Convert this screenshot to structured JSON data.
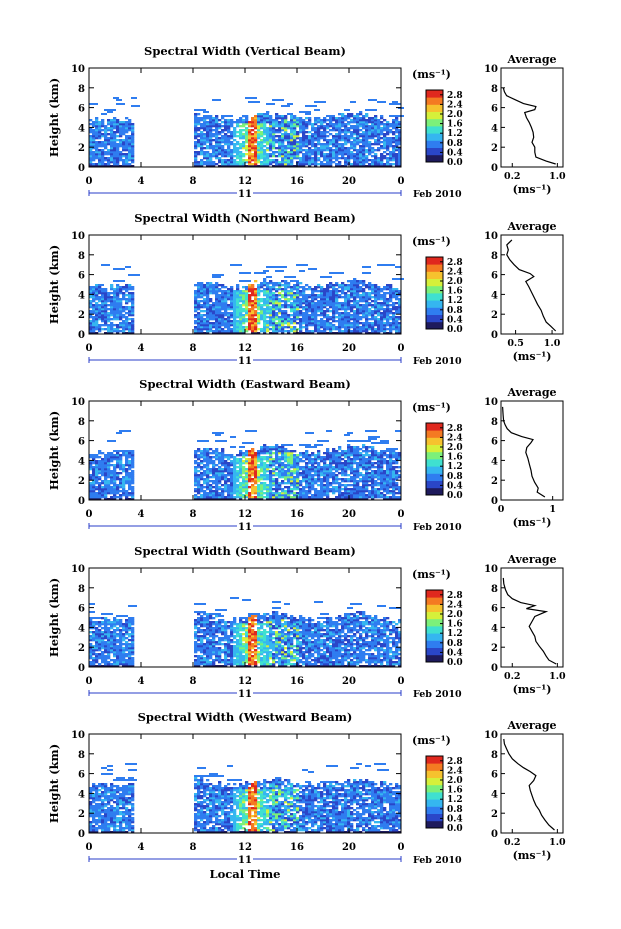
{
  "chart_data": [
    {
      "type": "heatmap",
      "title": "Spectral Width (Vertical Beam)",
      "ylabel": "Height (km)",
      "x_ticks": [
        "0",
        "4",
        "8",
        "12",
        "16",
        "20",
        "0"
      ],
      "y_ticks": [
        "0",
        "2",
        "4",
        "6",
        "8",
        "10"
      ],
      "xlim": [
        0,
        24
      ],
      "ylim": [
        0,
        10
      ],
      "day_label": "11",
      "date_label": "Feb 2010",
      "colorbar": {
        "unit": "(ms⁻¹)",
        "ticks": [
          "0.0",
          "0.4",
          "0.8",
          "1.2",
          "1.6",
          "2.0",
          "2.4",
          "2.8"
        ],
        "range": [
          0,
          3.0
        ]
      },
      "profile": {
        "title": "Average",
        "xlabel": "(ms⁻¹)",
        "x_ticks": [
          "0.2",
          "1.0"
        ],
        "x_tick_values": [
          0.2,
          1.0
        ],
        "xlim": [
          0,
          1.1
        ],
        "y_ticks": [
          "0",
          "2",
          "4",
          "6",
          "8",
          "10"
        ],
        "heights": [
          0.3,
          0.6,
          1.0,
          1.5,
          2.0,
          2.5,
          3.0,
          3.5,
          4.0,
          4.5,
          5.0,
          5.5,
          5.8,
          6.1,
          6.4,
          6.8,
          7.2,
          7.6,
          8.0
        ],
        "values": [
          0.97,
          0.8,
          0.62,
          0.6,
          0.6,
          0.55,
          0.58,
          0.57,
          0.54,
          0.5,
          0.45,
          0.42,
          0.6,
          0.62,
          0.4,
          0.25,
          0.1,
          0.06,
          0.04
        ]
      }
    },
    {
      "type": "heatmap",
      "title": "Spectral Width (Northward Beam)",
      "ylabel": "Height (km)",
      "x_ticks": [
        "0",
        "4",
        "8",
        "12",
        "16",
        "20",
        "0"
      ],
      "y_ticks": [
        "0",
        "2",
        "4",
        "6",
        "8",
        "10"
      ],
      "xlim": [
        0,
        24
      ],
      "ylim": [
        0,
        10
      ],
      "day_label": "11",
      "date_label": "Feb 2010",
      "colorbar": {
        "unit": "(ms⁻¹)",
        "ticks": [
          "0.0",
          "0.4",
          "0.8",
          "1.2",
          "1.6",
          "2.0",
          "2.4",
          "2.8"
        ],
        "range": [
          0,
          3.0
        ]
      },
      "profile": {
        "title": "Average",
        "xlabel": "(ms⁻¹)",
        "x_ticks": [
          "0.5",
          "1.0"
        ],
        "x_tick_values": [
          0.5,
          1.0
        ],
        "xlim": [
          0.3,
          1.15
        ],
        "y_ticks": [
          "0",
          "2",
          "4",
          "6",
          "8",
          "10"
        ],
        "heights": [
          0.3,
          0.8,
          1.2,
          1.8,
          2.4,
          3.0,
          3.6,
          4.2,
          4.8,
          5.3,
          5.8,
          6.1,
          6.5,
          7.0,
          7.5,
          8.0,
          8.5,
          9.0,
          9.5
        ],
        "values": [
          1.05,
          0.98,
          0.92,
          0.88,
          0.85,
          0.8,
          0.76,
          0.72,
          0.68,
          0.64,
          0.75,
          0.7,
          0.55,
          0.48,
          0.42,
          0.38,
          0.4,
          0.38,
          0.45
        ]
      }
    },
    {
      "type": "heatmap",
      "title": "Spectral Width (Eastward Beam)",
      "ylabel": "Height (km)",
      "x_ticks": [
        "0",
        "4",
        "8",
        "12",
        "16",
        "20",
        "0"
      ],
      "y_ticks": [
        "0",
        "2",
        "4",
        "6",
        "8",
        "10"
      ],
      "xlim": [
        0,
        24
      ],
      "ylim": [
        0,
        10
      ],
      "day_label": "11",
      "date_label": "Feb 2010",
      "colorbar": {
        "unit": "(ms⁻¹)",
        "ticks": [
          "0.0",
          "0.4",
          "0.8",
          "1.2",
          "1.6",
          "2.0",
          "2.4",
          "2.8"
        ],
        "range": [
          0,
          3.0
        ]
      },
      "profile": {
        "title": "Average",
        "xlabel": "(ms⁻¹)",
        "x_ticks": [
          "0",
          "1"
        ],
        "x_tick_values": [
          0,
          1
        ],
        "xlim": [
          0,
          1.2
        ],
        "y_ticks": [
          "0",
          "2",
          "4",
          "6",
          "8",
          "10"
        ],
        "heights": [
          0.3,
          0.8,
          1.2,
          1.8,
          2.4,
          3.0,
          3.6,
          4.2,
          4.8,
          5.3,
          5.8,
          6.1,
          6.4,
          6.8,
          7.2,
          7.6,
          8.0,
          8.6,
          9.4
        ],
        "values": [
          0.85,
          0.7,
          0.72,
          0.65,
          0.6,
          0.58,
          0.55,
          0.52,
          0.48,
          0.5,
          0.58,
          0.62,
          0.4,
          0.2,
          0.12,
          0.08,
          0.05,
          0.04,
          0.03
        ]
      }
    },
    {
      "type": "heatmap",
      "title": "Spectral Width (Southward Beam)",
      "ylabel": "Height (km)",
      "x_ticks": [
        "0",
        "4",
        "8",
        "12",
        "16",
        "20",
        "0"
      ],
      "y_ticks": [
        "0",
        "2",
        "4",
        "6",
        "8",
        "10"
      ],
      "xlim": [
        0,
        24
      ],
      "ylim": [
        0,
        10
      ],
      "day_label": "11",
      "date_label": "Feb 2010",
      "colorbar": {
        "unit": "(ms⁻¹)",
        "ticks": [
          "0.0",
          "0.4",
          "0.8",
          "1.2",
          "1.6",
          "2.0",
          "2.4",
          "2.8"
        ],
        "range": [
          0,
          3.0
        ]
      },
      "profile": {
        "title": "Average",
        "xlabel": "(ms⁻¹)",
        "x_ticks": [
          "0.2",
          "1.0"
        ],
        "x_tick_values": [
          0.2,
          1.0
        ],
        "xlim": [
          0,
          1.1
        ],
        "y_ticks": [
          "0",
          "2",
          "4",
          "6",
          "8",
          "10"
        ],
        "heights": [
          0.3,
          0.7,
          1.1,
          1.6,
          2.1,
          2.6,
          3.1,
          3.6,
          4.1,
          4.6,
          5.1,
          5.6,
          5.9,
          6.2,
          6.5,
          6.9,
          7.3,
          7.8,
          8.4,
          9.0
        ],
        "values": [
          0.98,
          0.85,
          0.8,
          0.75,
          0.68,
          0.62,
          0.6,
          0.55,
          0.5,
          0.55,
          0.6,
          0.8,
          0.45,
          0.6,
          0.35,
          0.2,
          0.12,
          0.08,
          0.05,
          0.04
        ]
      }
    },
    {
      "type": "heatmap",
      "title": "Spectral Width (Westward Beam)",
      "ylabel": "Height (km)",
      "xlabel": "Local Time",
      "x_ticks": [
        "0",
        "4",
        "8",
        "12",
        "16",
        "20",
        "0"
      ],
      "y_ticks": [
        "0",
        "2",
        "4",
        "6",
        "8",
        "10"
      ],
      "xlim": [
        0,
        24
      ],
      "ylim": [
        0,
        10
      ],
      "day_label": "11",
      "date_label": "Feb 2010",
      "colorbar": {
        "unit": "(ms⁻¹)",
        "ticks": [
          "0.0",
          "0.4",
          "0.8",
          "1.2",
          "1.6",
          "2.0",
          "2.4",
          "2.8"
        ],
        "range": [
          0,
          3.0
        ]
      },
      "profile": {
        "title": "Average",
        "xlabel": "(ms⁻¹)",
        "x_ticks": [
          "0.2",
          "1.0"
        ],
        "x_tick_values": [
          0.2,
          1.0
        ],
        "xlim": [
          0,
          1.1
        ],
        "y_ticks": [
          "0",
          "2",
          "4",
          "6",
          "8",
          "10"
        ],
        "heights": [
          0.3,
          0.8,
          1.3,
          1.8,
          2.3,
          2.8,
          3.3,
          3.8,
          4.3,
          4.8,
          5.3,
          5.8,
          6.2,
          6.6,
          7.0,
          7.5,
          8.0,
          8.5,
          9.0,
          9.5
        ],
        "values": [
          0.95,
          0.85,
          0.78,
          0.72,
          0.68,
          0.62,
          0.58,
          0.55,
          0.52,
          0.5,
          0.58,
          0.62,
          0.52,
          0.4,
          0.3,
          0.2,
          0.14,
          0.1,
          0.06,
          0.05
        ]
      }
    }
  ],
  "colors": {
    "colormap": [
      "#1e1a5c",
      "#2a46c8",
      "#2f7df0",
      "#35b6f0",
      "#3fe0d0",
      "#7cf07a",
      "#d6f03a",
      "#f6c22e",
      "#f47a22",
      "#e0281e"
    ]
  }
}
